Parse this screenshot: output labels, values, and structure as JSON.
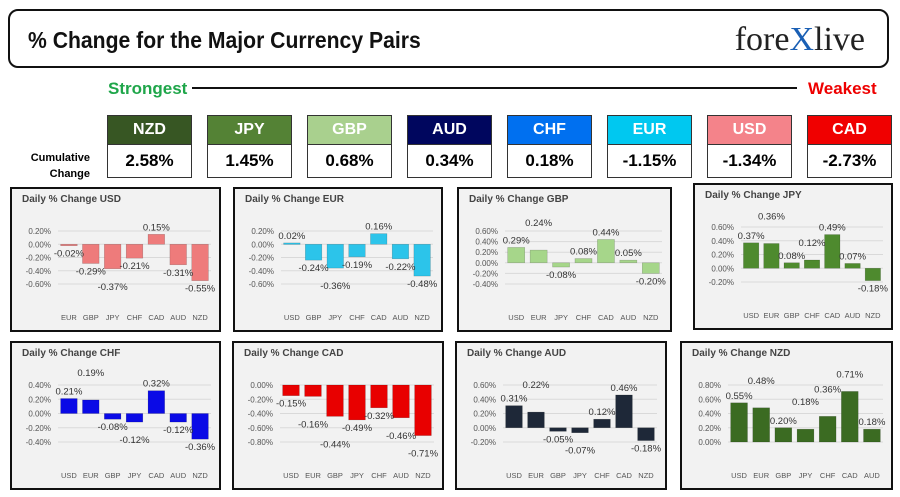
{
  "header": {
    "title": "% Change for the Major Currency Pairs",
    "logo": "forexlive",
    "strongest": "Strongest",
    "weakest": "Weakest",
    "cumulative_label": "Cumulative Change"
  },
  "ranking": [
    {
      "currency": "NZD",
      "value": "2.58%",
      "color": "#375623"
    },
    {
      "currency": "JPY",
      "value": "1.45%",
      "color": "#548235"
    },
    {
      "currency": "GBP",
      "value": "0.68%",
      "color": "#a9d08e"
    },
    {
      "currency": "AUD",
      "value": "0.34%",
      "color": "#00065e"
    },
    {
      "currency": "CHF",
      "value": "0.18%",
      "color": "#0070f0"
    },
    {
      "currency": "EUR",
      "value": "-1.15%",
      "color": "#00c8f0"
    },
    {
      "currency": "USD",
      "value": "-1.34%",
      "color": "#f4838a"
    },
    {
      "currency": "CAD",
      "value": "-2.73%",
      "color": "#f00000"
    }
  ],
  "chart_data": [
    {
      "type": "bar",
      "title": "Daily % Change USD",
      "categories": [
        "EUR",
        "GBP",
        "JPY",
        "CHF",
        "CAD",
        "AUD",
        "NZD"
      ],
      "values": [
        -0.02,
        -0.29,
        -0.37,
        -0.21,
        0.15,
        -0.31,
        -0.55
      ],
      "ylim": [
        -0.6,
        0.2
      ],
      "color": "#ee7b7b",
      "grid": true
    },
    {
      "type": "bar",
      "title": "Daily % Change EUR",
      "categories": [
        "USD",
        "GBP",
        "JPY",
        "CHF",
        "CAD",
        "AUD",
        "NZD"
      ],
      "values": [
        0.02,
        -0.24,
        -0.36,
        -0.19,
        0.16,
        -0.22,
        -0.48
      ],
      "ylim": [
        -0.6,
        0.2
      ],
      "color": "#2cc4ea",
      "grid": true
    },
    {
      "type": "bar",
      "title": "Daily % Change GBP",
      "categories": [
        "USD",
        "EUR",
        "JPY",
        "CHF",
        "CAD",
        "AUD",
        "NZD"
      ],
      "values": [
        0.29,
        0.24,
        -0.08,
        0.08,
        0.44,
        0.05,
        -0.2
      ],
      "ylim": [
        -0.4,
        0.6
      ],
      "color": "#a6d68a",
      "grid": true
    },
    {
      "type": "bar",
      "title": "Daily % Change JPY",
      "categories": [
        "USD",
        "EUR",
        "GBP",
        "CHF",
        "CAD",
        "AUD",
        "NZD"
      ],
      "values": [
        0.37,
        0.36,
        0.08,
        0.12,
        0.49,
        0.07,
        -0.18
      ],
      "ylim": [
        -0.2,
        0.6
      ],
      "color": "#4e8a2e",
      "grid": true
    },
    {
      "type": "bar",
      "title": "Daily % Change CHF",
      "categories": [
        "USD",
        "EUR",
        "GBP",
        "JPY",
        "CAD",
        "AUD",
        "NZD"
      ],
      "values": [
        0.21,
        0.19,
        -0.08,
        -0.12,
        0.32,
        -0.12,
        -0.36
      ],
      "ylim": [
        -0.4,
        0.4
      ],
      "color": "#0a0ae6",
      "grid": true
    },
    {
      "type": "bar",
      "title": "Daily % Change CAD",
      "categories": [
        "USD",
        "EUR",
        "GBP",
        "JPY",
        "CHF",
        "AUD",
        "NZD"
      ],
      "values": [
        -0.15,
        -0.16,
        -0.44,
        -0.49,
        -0.32,
        -0.46,
        -0.71
      ],
      "ylim": [
        -0.8,
        0.0
      ],
      "color": "#e80000",
      "grid": true
    },
    {
      "type": "bar",
      "title": "Daily % Change AUD",
      "categories": [
        "USD",
        "EUR",
        "GBP",
        "JPY",
        "CHF",
        "CAD",
        "NZD"
      ],
      "values": [
        0.31,
        0.22,
        -0.05,
        -0.07,
        0.12,
        0.46,
        -0.18
      ],
      "ylim": [
        -0.2,
        0.6
      ],
      "color": "#1e2838",
      "grid": true
    },
    {
      "type": "bar",
      "title": "Daily % Change NZD",
      "categories": [
        "USD",
        "EUR",
        "GBP",
        "JPY",
        "CHF",
        "CAD",
        "AUD"
      ],
      "values": [
        0.55,
        0.48,
        0.2,
        0.18,
        0.36,
        0.71,
        0.18
      ],
      "ylim": [
        0.0,
        0.8
      ],
      "color": "#3b6b22",
      "grid": true
    }
  ]
}
